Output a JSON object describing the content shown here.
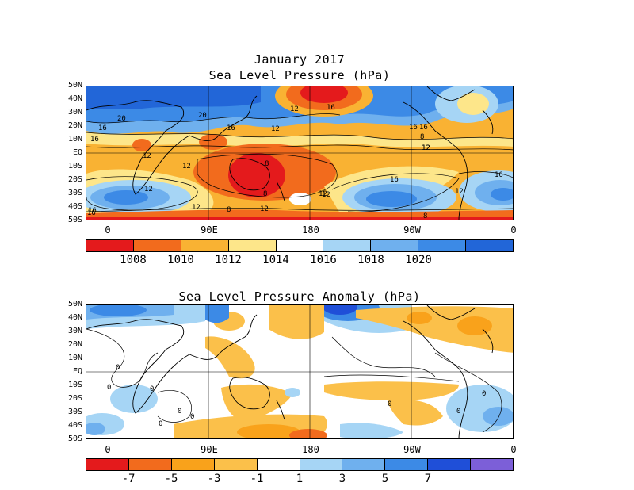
{
  "header": {
    "date": "January 2017",
    "title1": "Sea Level Pressure (hPa)",
    "title2": "Sea Level Pressure Anomaly (hPa)"
  },
  "lat_labels": [
    "50N",
    "40N",
    "30N",
    "20N",
    "10N",
    "EQ",
    "10S",
    "20S",
    "30S",
    "40S",
    "50S"
  ],
  "lon_labels": [
    "0",
    "90E",
    "180",
    "90W",
    "0"
  ],
  "colorbar1": {
    "colors": [
      "#e41a1c",
      "#f26b1d",
      "#f9b233",
      "#fde68a",
      "#ffffff",
      "#a6d5f5",
      "#6fb0ee",
      "#3c8ae6",
      "#2266d8"
    ],
    "labels": [
      "1008",
      "1010",
      "1012",
      "1014",
      "1016",
      "1018",
      "1020"
    ]
  },
  "colorbar2": {
    "colors": [
      "#e41a1c",
      "#f26b1d",
      "#f9a21b",
      "#fbc04a",
      "#ffffff",
      "#a6d5f5",
      "#6fb0ee",
      "#3c8ae6",
      "#1f4fd8",
      "#7c5fd8"
    ],
    "labels": [
      "-7",
      "-5",
      "-3",
      "-1",
      "1",
      "3",
      "5",
      "7"
    ]
  },
  "contour_labels1": [
    "20",
    "20",
    "16",
    "16",
    "12",
    "12",
    "16",
    "12",
    "16",
    "12",
    "8",
    "12",
    "16",
    "16",
    "12",
    "8",
    "16",
    "12",
    "8",
    "12",
    "12",
    "8",
    "12",
    "16",
    "8",
    "16",
    "12",
    "16",
    "12"
  ],
  "contour_labels2": [
    "0",
    "0",
    "0",
    "0",
    "0",
    "0",
    "0",
    "0",
    "0"
  ]
}
